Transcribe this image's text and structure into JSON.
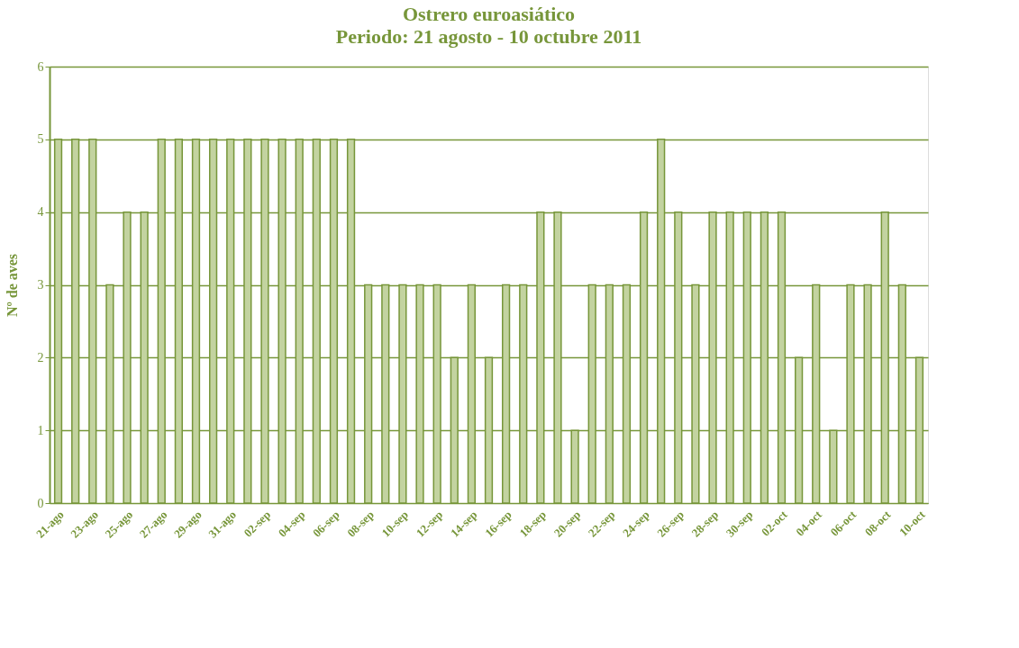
{
  "chart_data": {
    "type": "bar",
    "title": "Ostrero euroasiático",
    "subtitle": "Periodo: 21 agosto - 10 octubre 2011",
    "ylabel": "Nº de aves",
    "categories": [
      "21-ago",
      null,
      "23-ago",
      null,
      "25-ago",
      null,
      "27-ago",
      null,
      "29-ago",
      null,
      "31-ago",
      null,
      "02-sep",
      null,
      "04-sep",
      null,
      "06-sep",
      null,
      "08-sep",
      null,
      "10-sep",
      null,
      "12-sep",
      null,
      "14-sep",
      null,
      "16-sep",
      null,
      "18-sep",
      null,
      "20-sep",
      null,
      "22-sep",
      null,
      "24-sep",
      null,
      "26-sep",
      null,
      "28-sep",
      null,
      "30-sep",
      null,
      "02-oct",
      null,
      "04-oct",
      null,
      "06-oct",
      null,
      "08-oct",
      null,
      "10-oct"
    ],
    "values": [
      5,
      5,
      5,
      3,
      4,
      4,
      5,
      5,
      5,
      5,
      5,
      5,
      5,
      5,
      5,
      5,
      5,
      5,
      3,
      3,
      3,
      3,
      3,
      2,
      3,
      2,
      3,
      3,
      4,
      4,
      1,
      3,
      3,
      3,
      4,
      5,
      4,
      3,
      4,
      4,
      4,
      4,
      4,
      2,
      3,
      1,
      3,
      3,
      4,
      3,
      2
    ],
    "color": "#c3d3a0",
    "ylim": [
      0,
      6
    ],
    "yticks": [
      0,
      1,
      2,
      3,
      4,
      5,
      6
    ],
    "grid": "y"
  }
}
